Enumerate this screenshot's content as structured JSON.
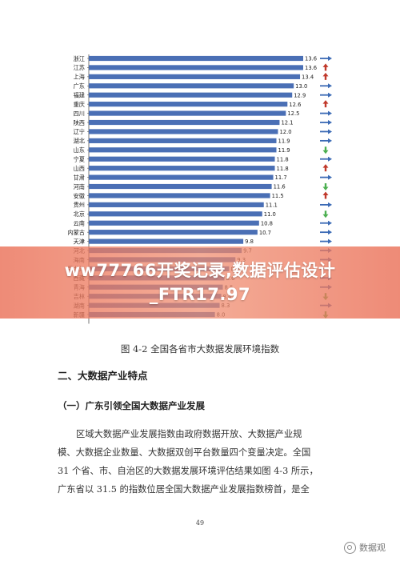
{
  "chart_data": {
    "type": "bar",
    "orientation": "horizontal",
    "bar_color": "#4a6fb5",
    "categories": [
      "浙江",
      "江苏",
      "上海",
      "广东",
      "福建",
      "重庆",
      "四川",
      "陕西",
      "辽宁",
      "湖北",
      "山东",
      "宁夏",
      "山西",
      "甘肃",
      "河南",
      "安徽",
      "贵州",
      "北京",
      "云南",
      "内蒙古",
      "天津",
      "河北",
      "海南",
      "黑龙江",
      "西藏",
      "青海",
      "吉林",
      "湖南",
      "新疆"
    ],
    "values": [
      13.6,
      13.6,
      13.4,
      13.0,
      12.9,
      12.6,
      12.5,
      12.1,
      12.0,
      11.9,
      11.9,
      11.8,
      11.8,
      11.7,
      11.6,
      11.5,
      11.1,
      11.0,
      10.8,
      10.7,
      9.8,
      9.7,
      9.3,
      8.9,
      8.6,
      8.5,
      8.4,
      8.3,
      8.0
    ],
    "value_labels": [
      "13.6",
      "13.6",
      "13.4",
      "13.0",
      "12.9",
      "12.6",
      "12.5",
      "12.1",
      "12.0",
      "11.9",
      "11.9",
      "11.8",
      "11.8",
      "11.7",
      "11.6",
      "11.5",
      "11.1",
      "11.0",
      "10.8",
      "10.7",
      "9.8",
      "9.7",
      "9.3",
      "8.9",
      "8.6",
      "8.5",
      "8.4",
      "8.3",
      "8.0"
    ],
    "trend": [
      "flat",
      "up",
      "up",
      "flat",
      "flat",
      "up",
      "flat",
      "flat",
      "flat",
      "flat",
      "down",
      "flat",
      "up",
      "flat",
      "down",
      "up",
      "flat",
      "down",
      "flat",
      "flat",
      "flat",
      "flat",
      "flat",
      "flat",
      "flat",
      "flat",
      "down",
      "flat",
      "down"
    ],
    "trend_colors": {
      "flat": "#3b6ab5",
      "up": "#c0392b",
      "down": "#4caf50"
    },
    "xlim": [
      0,
      14
    ],
    "title": "",
    "xlabel": "",
    "ylabel": "",
    "grid": false,
    "legend": "none"
  },
  "banner": {
    "text": "ww77766开奖记录,数据评估设计_FTR17.97"
  },
  "document": {
    "caption": "图 4-2 全国各省市大数据发展环境指数",
    "section_title": "二、大数据产业特点",
    "subsection_title": "（一）广东引领全国大数据产业发展",
    "paragraph_lines": [
      "区域大数据产业发展指数由政府数据开放、大数据产业规",
      "模、大数据企业数量、大数据双创平台数量四个变量决定。全国",
      "31 个省、市、自治区的大数据发展环境评估结果如图 4-3 所示，",
      "广东省以 31.5 的指数位居全国大数据产业发展指数榜首，是全"
    ],
    "page_number": "49"
  },
  "watermark": {
    "icon": "wechat-icon",
    "text": "数据观"
  }
}
